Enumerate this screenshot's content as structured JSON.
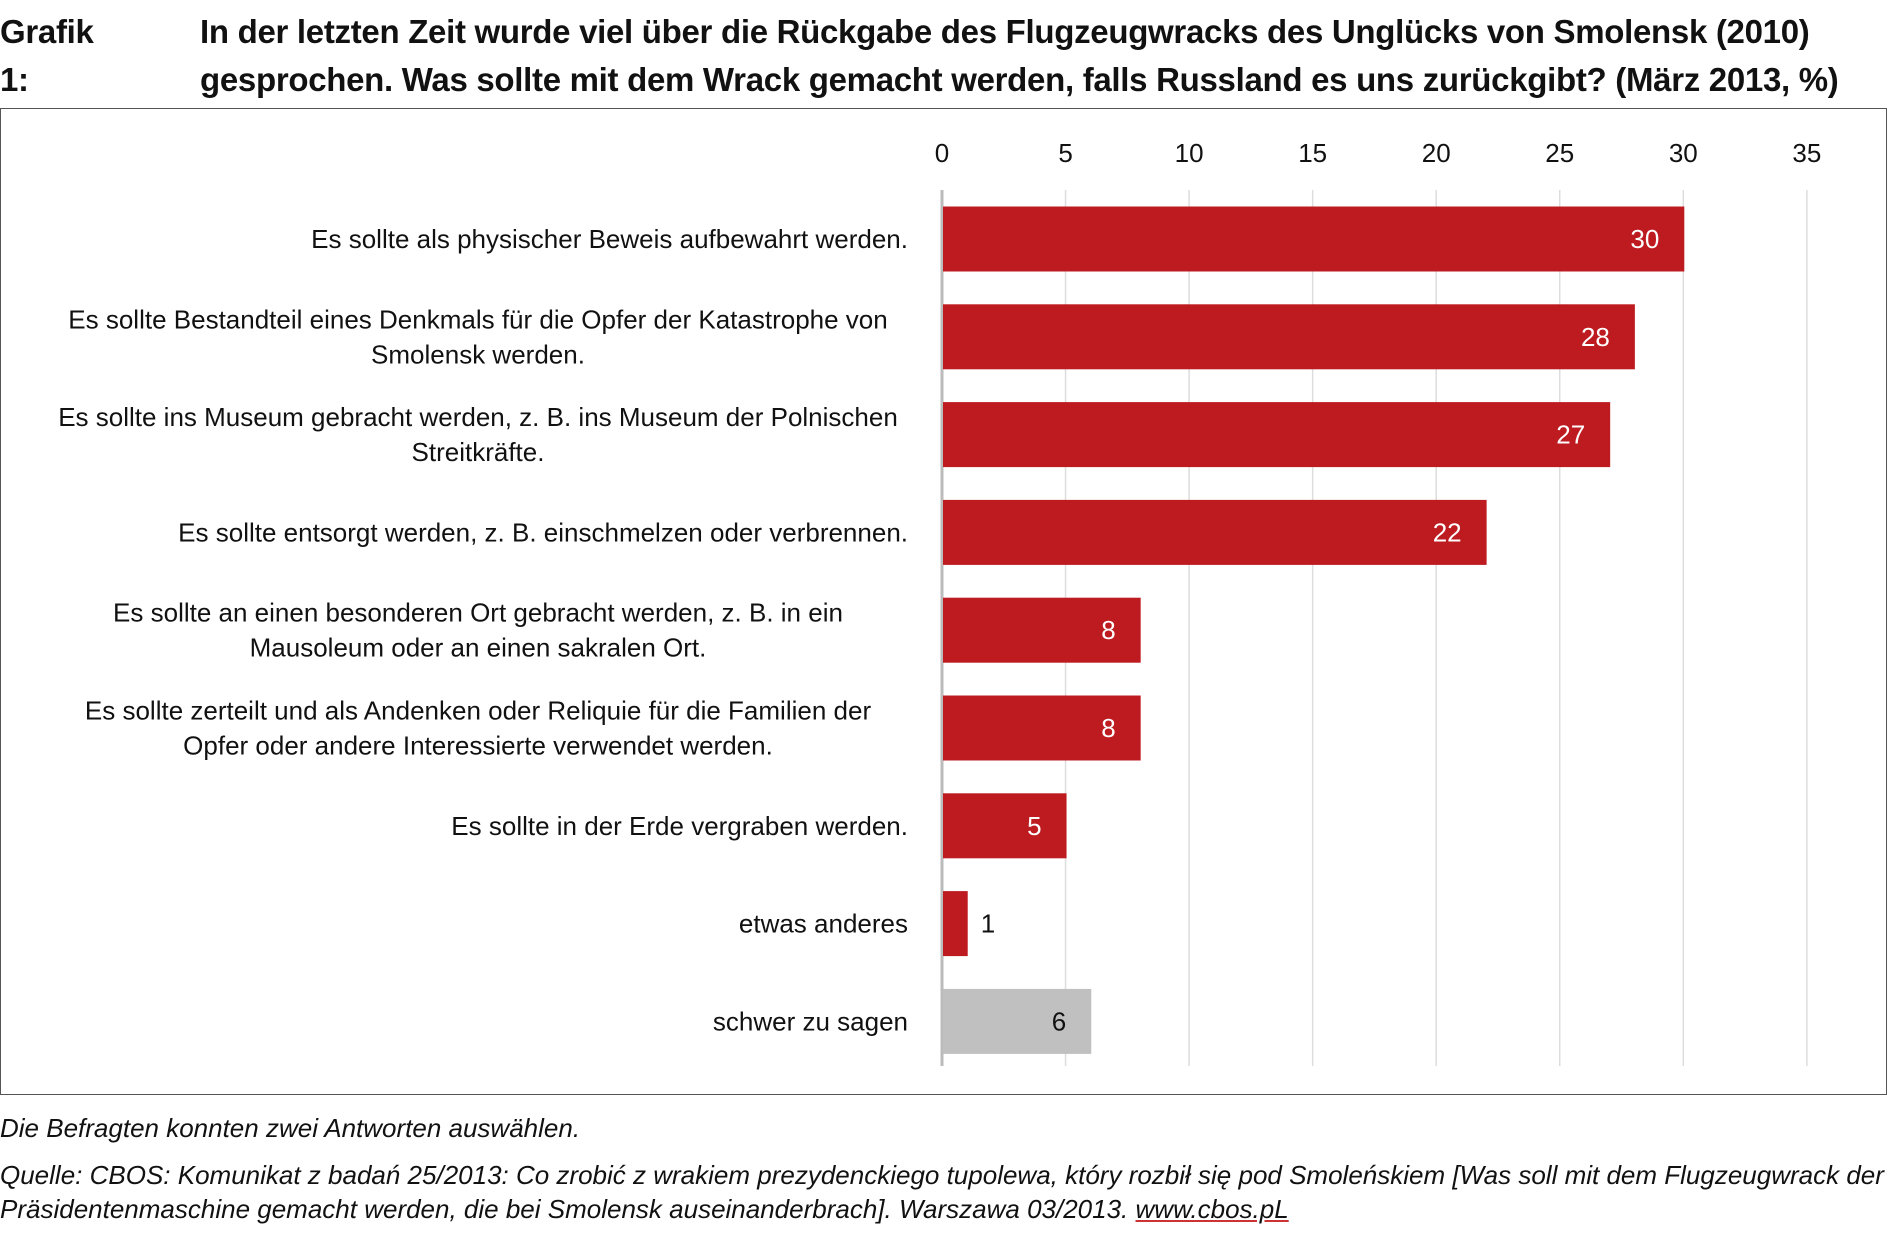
{
  "title": {
    "number": "Grafik 1:",
    "line1": "In der letzten Zeit wurde viel über die Rückgabe des Flugzeugwracks des Unglücks von Smolensk (2010)",
    "line2": "gesprochen. Was sollte mit dem Wrack gemacht werden, falls Russland es uns zurückgibt? (März 2013, %)"
  },
  "chart_data": {
    "type": "bar",
    "orientation": "horizontal",
    "title": "Was sollte mit dem Wrack gemacht werden, falls Russland es uns zurückgibt? (März 2013, %)",
    "xlim": [
      0,
      35
    ],
    "xticks": [
      "0",
      "5",
      "10",
      "15",
      "20",
      "25",
      "30",
      "35"
    ],
    "grid": true,
    "categories": [
      [
        "Es sollte als physischer Beweis aufbewahrt werden."
      ],
      [
        "Es sollte Bestandteil eines Denkmals für die Opfer der Katastrophe von",
        "Smolensk werden."
      ],
      [
        "Es sollte ins Museum gebracht werden, z. B. ins Museum der Polnischen",
        "Streitkräfte."
      ],
      [
        "Es sollte entsorgt werden, z. B. einschmelzen oder verbrennen."
      ],
      [
        "Es sollte an einen besonderen Ort gebracht werden, z. B. in ein",
        "Mausoleum oder an einen sakralen Ort."
      ],
      [
        "Es sollte zerteilt und als Andenken oder Reliquie für die Familien der",
        "Opfer oder andere Interessierte verwendet werden."
      ],
      [
        "Es sollte in der Erde vergraben werden."
      ],
      [
        "etwas anderes"
      ],
      [
        "schwer zu sagen"
      ]
    ],
    "values": [
      30,
      28,
      27,
      22,
      8,
      8,
      5,
      1,
      6
    ],
    "colors": [
      "#be1b20",
      "#be1b20",
      "#be1b20",
      "#be1b20",
      "#be1b20",
      "#be1b20",
      "#be1b20",
      "#be1b20",
      "#c0c0c0"
    ]
  },
  "footer": {
    "note": "Die Befragten konnten zwei Antworten auswählen.",
    "source1": "Quelle: CBOS: Komunikat z badań 25/2013: Co zrobić z wrakiem prezydenckiego tupolewa, który rozbił się pod Smoleńskiem [Was soll mit dem Flugzeugwrack der",
    "source2": "Präsidentenmaschine gemacht werden, die bei Smolensk auseinanderbrach]. Warszawa 03/2013. ",
    "link": "www.cbos.pL"
  }
}
